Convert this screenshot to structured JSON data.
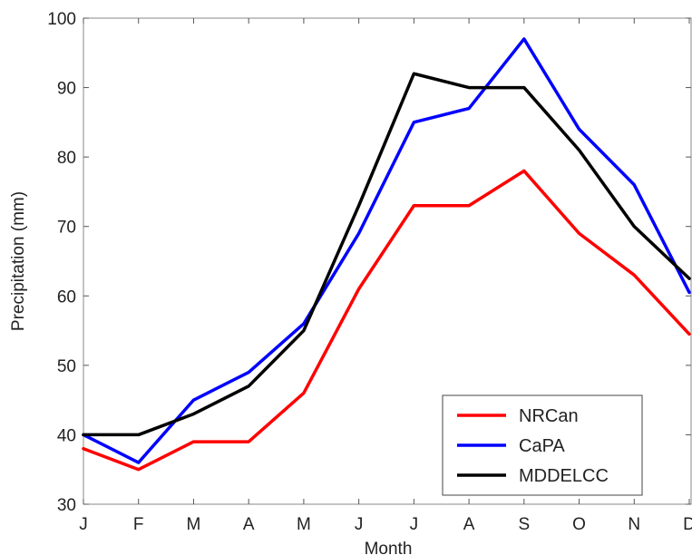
{
  "chart_data": {
    "type": "line",
    "xlabel": "Month",
    "ylabel": "Precipitation (mm)",
    "categories": [
      "J",
      "F",
      "M",
      "A",
      "M",
      "J",
      "J",
      "A",
      "S",
      "O",
      "N",
      "D"
    ],
    "ylim": [
      30,
      100
    ],
    "yticks": [
      30,
      40,
      50,
      60,
      70,
      80,
      90,
      100
    ],
    "grid": false,
    "legend_position": "bottom-right",
    "series": [
      {
        "name": "NRCan",
        "color": "#ff0000",
        "values": [
          38,
          35,
          39,
          39,
          46,
          61,
          73,
          73,
          78,
          69,
          63,
          54.5
        ]
      },
      {
        "name": "CaPA",
        "color": "#0000ff",
        "values": [
          40,
          36,
          45,
          49,
          56,
          69,
          85,
          87,
          97,
          84,
          76,
          60.5
        ]
      },
      {
        "name": "MDDELCC",
        "color": "#000000",
        "values": [
          40,
          40,
          43,
          47,
          55,
          73,
          92,
          90,
          90,
          81,
          70,
          62.5
        ]
      }
    ]
  }
}
